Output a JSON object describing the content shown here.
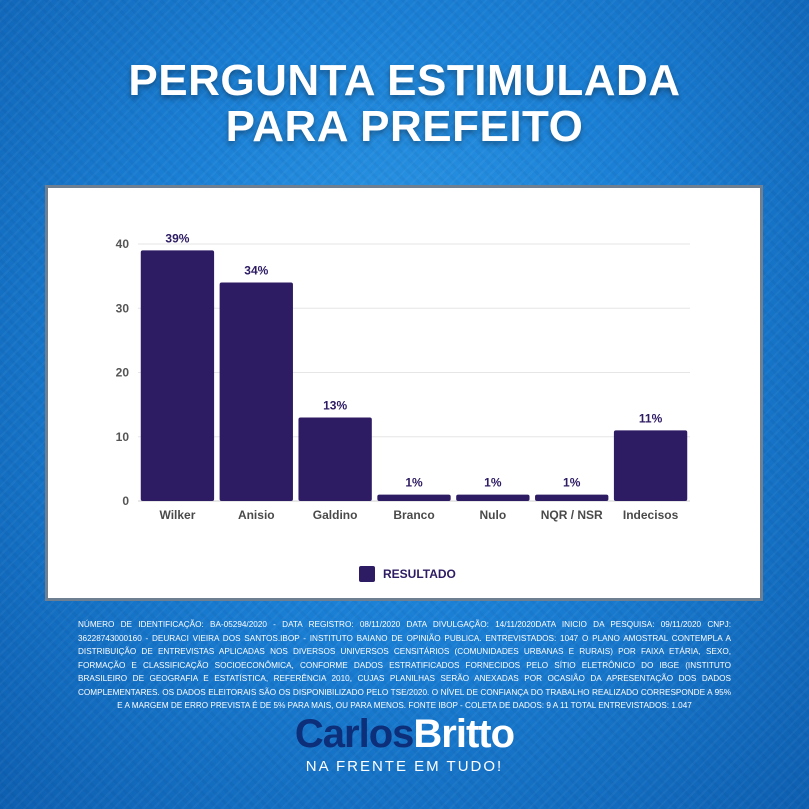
{
  "header": {
    "title_line1": "PERGUNTA ESTIMULADA",
    "title_line2": "PARA PREFEITO"
  },
  "chart_data": {
    "type": "bar",
    "categories": [
      "Wilker",
      "Anisio",
      "Galdino",
      "Branco",
      "Nulo",
      "NQR / NSR",
      "Indecisos"
    ],
    "series": [
      {
        "name": "RESULTADO",
        "values": [
          39,
          34,
          13,
          1,
          1,
          1,
          11
        ]
      }
    ],
    "data_labels": [
      "39%",
      "34%",
      "13%",
      "1%",
      "1%",
      "1%",
      "11%"
    ],
    "yticks": [
      0,
      10,
      20,
      30,
      40
    ],
    "ylim": [
      0,
      40
    ],
    "grid": true,
    "legend_position": "bottom",
    "bar_color": "#2d1b63"
  },
  "footnote": "NÚMERO DE IDENTIFICAÇÃO: BA-05294/2020 - DATA REGISTRO: 08/11/2020 DATA DIVULGAÇÃO: 14/11/2020DATA INICIO DA PESQUISA: 09/11/2020 CNPJ: 36228743000160 - DEURACI VIEIRA DOS SANTOS.IBOP - INSTITUTO BAIANO DE OPINIÃO PUBLICA. ENTREVISTADOS: 1047 O PLANO AMOSTRAL CONTEMPLA A DISTRIBUIÇÃO DE ENTREVISTAS APLICADAS NOS DIVERSOS UNIVERSOS CENSITÁRIOS (COMUNIDADES URBANAS E RURAIS) POR FAIXA ETÁRIA, SEXO, FORMAÇÃO E CLASSIFICAÇÃO SOCIOECONÔMICA, CONFORME DADOS ESTRATIFICADOS FORNECIDOS PELO SÍTIO ELETRÔNICO DO IBGE (INSTITUTO BRASILEIRO DE GEOGRAFIA E ESTATÍSTICA, REFERÊNCIA 2010, CUJAS PLANILHAS SERÃO ANEXADAS POR OCASIÃO DA APRESENTAÇÃO DOS DADOS COMPLEMENTARES. OS DADOS ELEITORAIS SÃO OS DISPONIBILIZADO PELO TSE/2020. O NÍVEL DE CONFIANÇA DO TRABALHO REALIZADO CORRESPONDE A 95% E A MARGEM DE ERRO PREVISTA É DE 5% PARA MAIS, OU PARA MENOS. FONTE IBOP - COLETA DE DADOS: 9 A 11 TOTAL ENTREVISTADOS: 1.047",
  "brand": {
    "name_first": "Carlos",
    "name_second": "Britto",
    "tagline": "NA FRENTE EM TUDO!"
  }
}
